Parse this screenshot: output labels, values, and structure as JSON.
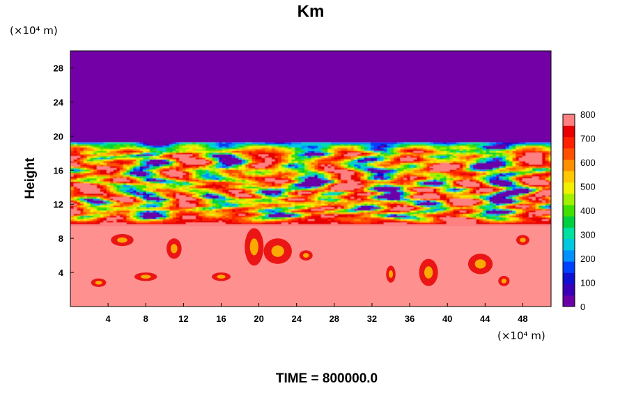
{
  "chart_data": {
    "type": "heatmap",
    "title": "Km",
    "ylabel": "Height",
    "xlabel": "",
    "x_unit_label": "(×10⁴ m)",
    "y_unit_label": "(×10⁴ m)",
    "xlim": [
      0,
      51
    ],
    "ylim": [
      0,
      30
    ],
    "x_ticks": [
      4,
      8,
      12,
      16,
      20,
      24,
      28,
      32,
      36,
      40,
      44,
      48
    ],
    "y_ticks": [
      4,
      8,
      12,
      16,
      20,
      24,
      28
    ],
    "x_tick_labels": [
      "4",
      "8",
      "12",
      "16",
      "20",
      "24",
      "28",
      "32",
      "36",
      "40",
      "44",
      "48"
    ],
    "y_tick_labels": [
      "4",
      "8",
      "12",
      "16",
      "20",
      "24",
      "28"
    ],
    "colorbar": {
      "min": 0,
      "max": 800,
      "ticks": [
        0,
        100,
        200,
        300,
        400,
        500,
        600,
        700,
        800
      ],
      "tick_labels": [
        "0",
        "100",
        "200",
        "300",
        "400",
        "500",
        "600",
        "700",
        "800"
      ],
      "colors": [
        "#6a00a8",
        "#3a00b8",
        "#1010d0",
        "#0040ff",
        "#0090ff",
        "#00c8e0",
        "#00e0a0",
        "#00d040",
        "#40e000",
        "#a0f000",
        "#f0f000",
        "#ffc800",
        "#ff9000",
        "#ff5000",
        "#ff2000",
        "#e80000",
        "#ff8080"
      ]
    },
    "regions": {
      "upper_uniform_value": 0,
      "turbulent_layer_y": [
        9.5,
        19.3
      ],
      "lower_uniform_value": 800,
      "lower_layer_y": [
        0,
        9.5
      ]
    },
    "colors": {
      "top": "#7300a6",
      "bottom": "#ff9090"
    },
    "footer": "TIME = 800000.0"
  }
}
